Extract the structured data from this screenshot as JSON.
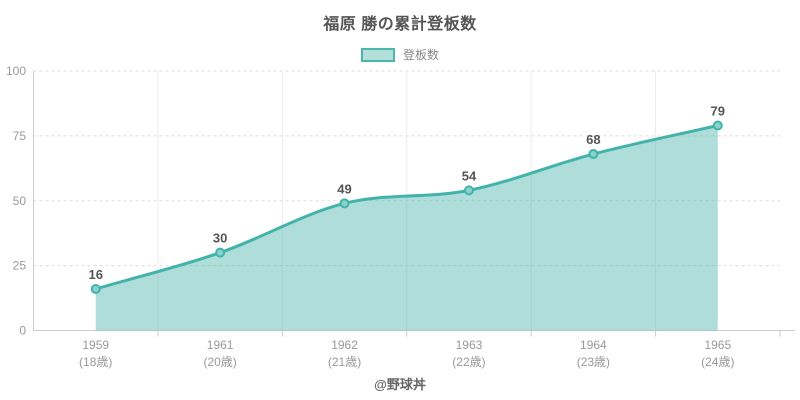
{
  "chart_data": {
    "type": "area",
    "title": "福原 勝の累計登板数",
    "footer": "@野球丼",
    "categories": [
      {
        "year": "1959",
        "age": "(18歳)"
      },
      {
        "year": "1961",
        "age": "(20歳)"
      },
      {
        "year": "1962",
        "age": "(21歳)"
      },
      {
        "year": "1963",
        "age": "(22歳)"
      },
      {
        "year": "1964",
        "age": "(23歳)"
      },
      {
        "year": "1965",
        "age": "(24歳)"
      }
    ],
    "series": [
      {
        "name": "登板数",
        "values": [
          16,
          30,
          49,
          54,
          68,
          79
        ]
      }
    ],
    "ylim": [
      0,
      100
    ],
    "yticks": [
      0,
      25,
      50,
      75,
      100
    ],
    "grid": true,
    "legend_position": "top",
    "xlabel": "",
    "ylabel": ""
  },
  "colors": {
    "line": "#42b3ab",
    "area_fill": "#4db6ac",
    "area_opacity": "0.45",
    "marker_fill": "#8ad1cb",
    "legend_border": "#4db6ac",
    "legend_fill": "#b4e0dc",
    "grid_h": "#dddddd",
    "grid_v": "#ebebeb",
    "axis": "#cccccc",
    "tick_text": "#999999",
    "value_text": "#555555",
    "title_text": "#555555",
    "footer_text": "#666666"
  }
}
